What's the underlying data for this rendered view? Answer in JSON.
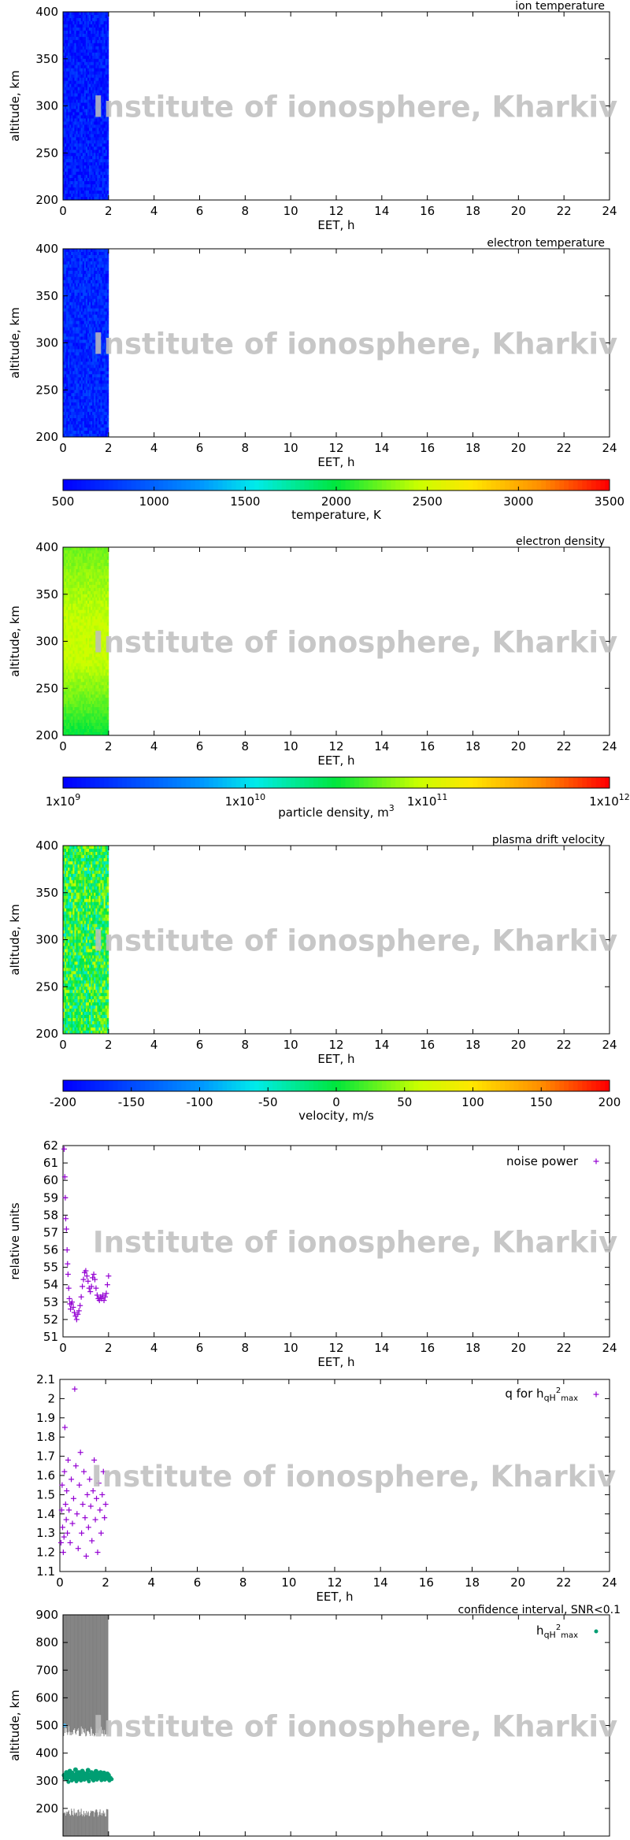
{
  "watermark": "Institute of ionosphere, Kharkiv",
  "colors": {
    "noise": "#9400d3",
    "q": "#9400d3",
    "h": "#009e73",
    "ci": "#808080",
    "ci_dot": "#56b4e9"
  },
  "chart_data": [
    {
      "type": "heatmap",
      "title": "ion temperature",
      "xlabel": "EET, h",
      "ylabel": "altitude, km",
      "xlim": [
        0,
        24
      ],
      "ylim": [
        200,
        400
      ],
      "xticks": [
        "0",
        "2",
        "4",
        "6",
        "8",
        "10",
        "12",
        "14",
        "16",
        "18",
        "20",
        "22",
        "24"
      ],
      "yticks": [
        "200",
        "250",
        "300",
        "350",
        "400"
      ],
      "data_coverage_hours": [
        0,
        2
      ],
      "colorbar": "temperature",
      "dominant_value_K": 650
    },
    {
      "type": "heatmap",
      "title": "electron temperature",
      "xlabel": "EET, h",
      "ylabel": "altitude, km",
      "xlim": [
        0,
        24
      ],
      "ylim": [
        200,
        400
      ],
      "xticks": [
        "0",
        "2",
        "4",
        "6",
        "8",
        "10",
        "12",
        "14",
        "16",
        "18",
        "20",
        "22",
        "24"
      ],
      "yticks": [
        "200",
        "250",
        "300",
        "350",
        "400"
      ],
      "data_coverage_hours": [
        0,
        2
      ],
      "colorbar": "temperature",
      "dominant_value_K": 700
    },
    {
      "type": "colorbar",
      "label": "temperature, K",
      "range": [
        500,
        3500
      ],
      "ticks": [
        "500",
        "1000",
        "1500",
        "2000",
        "2500",
        "3000",
        "3500"
      ]
    },
    {
      "type": "heatmap",
      "title": "electron density",
      "xlabel": "EET, h",
      "ylabel": "altitude, km",
      "xlim": [
        0,
        24
      ],
      "ylim": [
        200,
        400
      ],
      "xticks": [
        "0",
        "2",
        "4",
        "6",
        "8",
        "10",
        "12",
        "14",
        "16",
        "18",
        "20",
        "22",
        "24"
      ],
      "yticks": [
        "200",
        "250",
        "300",
        "350",
        "400"
      ],
      "data_coverage_hours": [
        0,
        2
      ],
      "colorbar": "density",
      "profile_log10_m3": [
        [
          200,
          10.5
        ],
        [
          240,
          10.75
        ],
        [
          280,
          10.95
        ],
        [
          320,
          10.95
        ],
        [
          360,
          10.85
        ],
        [
          400,
          10.75
        ]
      ]
    },
    {
      "type": "colorbar",
      "label": "particle density, m",
      "label_sup": "3",
      "scale": "log",
      "range": [
        1000000000.0,
        1000000000000.0
      ],
      "ticks": [
        {
          "base": "1x10",
          "exp": "9"
        },
        {
          "base": "1x10",
          "exp": "10"
        },
        {
          "base": "1x10",
          "exp": "11"
        },
        {
          "base": "1x10",
          "exp": "12"
        }
      ]
    },
    {
      "type": "heatmap",
      "title": "plasma drift velocity",
      "xlabel": "EET, h",
      "ylabel": "altitude, km",
      "xlim": [
        0,
        24
      ],
      "ylim": [
        200,
        400
      ],
      "xticks": [
        "0",
        "2",
        "4",
        "6",
        "8",
        "10",
        "12",
        "14",
        "16",
        "18",
        "20",
        "22",
        "24"
      ],
      "yticks": [
        "200",
        "250",
        "300",
        "350",
        "400"
      ],
      "data_coverage_hours": [
        0,
        2
      ],
      "colorbar": "velocity",
      "dominant_value_ms": 5
    },
    {
      "type": "colorbar",
      "label": "velocity, m/s",
      "range": [
        -200,
        200
      ],
      "ticks": [
        "-200",
        "-150",
        "-100",
        "-50",
        "0",
        "50",
        "100",
        "150",
        "200"
      ]
    },
    {
      "type": "scatter",
      "legend": "noise power",
      "legend_position": "top-right",
      "xlabel": "EET, h",
      "ylabel": "relative units",
      "xlim": [
        0,
        24
      ],
      "ylim": [
        51,
        62
      ],
      "xticks": [
        "0",
        "2",
        "4",
        "6",
        "8",
        "10",
        "12",
        "14",
        "16",
        "18",
        "20",
        "22",
        "24"
      ],
      "yticks": [
        "51",
        "52",
        "53",
        "54",
        "55",
        "56",
        "57",
        "58",
        "59",
        "60",
        "61",
        "62"
      ],
      "points": [
        [
          0.05,
          61.8
        ],
        [
          0.08,
          60.2
        ],
        [
          0.1,
          59.0
        ],
        [
          0.12,
          57.8
        ],
        [
          0.15,
          57.2
        ],
        [
          0.18,
          56.0
        ],
        [
          0.2,
          55.2
        ],
        [
          0.22,
          54.6
        ],
        [
          0.25,
          53.8
        ],
        [
          0.28,
          53.2
        ],
        [
          0.3,
          52.9
        ],
        [
          0.33,
          52.6
        ],
        [
          0.36,
          52.9
        ],
        [
          0.4,
          53.0
        ],
        [
          0.45,
          52.7
        ],
        [
          0.5,
          52.4
        ],
        [
          0.55,
          52.2
        ],
        [
          0.6,
          52.0
        ],
        [
          0.65,
          52.3
        ],
        [
          0.7,
          52.5
        ],
        [
          0.75,
          52.8
        ],
        [
          0.8,
          53.3
        ],
        [
          0.85,
          53.9
        ],
        [
          0.9,
          54.3
        ],
        [
          0.95,
          54.7
        ],
        [
          1.0,
          54.8
        ],
        [
          1.05,
          54.5
        ],
        [
          1.1,
          54.2
        ],
        [
          1.15,
          53.8
        ],
        [
          1.2,
          53.6
        ],
        [
          1.25,
          53.9
        ],
        [
          1.3,
          54.4
        ],
        [
          1.35,
          54.6
        ],
        [
          1.4,
          54.3
        ],
        [
          1.45,
          53.8
        ],
        [
          1.5,
          53.4
        ],
        [
          1.55,
          53.2
        ],
        [
          1.6,
          53.1
        ],
        [
          1.65,
          53.3
        ],
        [
          1.7,
          53.2
        ],
        [
          1.75,
          53.4
        ],
        [
          1.8,
          53.1
        ],
        [
          1.85,
          53.3
        ],
        [
          1.9,
          53.5
        ],
        [
          1.95,
          54.0
        ],
        [
          2.0,
          54.5
        ]
      ]
    },
    {
      "type": "scatter",
      "legend": "q for h",
      "legend_sub": "qH",
      "legend_sup": "2",
      "legend_sub2": "max",
      "legend_position": "top-right",
      "xlabel": "EET, h",
      "ylabel": "",
      "xlim": [
        0,
        24
      ],
      "ylim": [
        1.1,
        2.1
      ],
      "xticks": [
        "0",
        "2",
        "4",
        "6",
        "8",
        "10",
        "12",
        "14",
        "16",
        "18",
        "20",
        "22",
        "24"
      ],
      "yticks": [
        "1.1",
        "1.2",
        "1.3",
        "1.4",
        "1.5",
        "1.6",
        "1.7",
        "1.8",
        "1.9",
        "2",
        "2.1"
      ],
      "points": [
        [
          0.05,
          1.25
        ],
        [
          0.08,
          1.42
        ],
        [
          0.1,
          1.55
        ],
        [
          0.12,
          1.33
        ],
        [
          0.15,
          1.2
        ],
        [
          0.18,
          1.28
        ],
        [
          0.2,
          1.62
        ],
        [
          0.22,
          1.85
        ],
        [
          0.25,
          1.45
        ],
        [
          0.28,
          1.37
        ],
        [
          0.3,
          1.52
        ],
        [
          0.33,
          1.3
        ],
        [
          0.36,
          1.68
        ],
        [
          0.4,
          1.42
        ],
        [
          0.45,
          1.25
        ],
        [
          0.5,
          1.58
        ],
        [
          0.55,
          1.35
        ],
        [
          0.6,
          1.48
        ],
        [
          0.65,
          2.05
        ],
        [
          0.7,
          1.65
        ],
        [
          0.75,
          1.4
        ],
        [
          0.8,
          1.22
        ],
        [
          0.85,
          1.55
        ],
        [
          0.9,
          1.72
        ],
        [
          0.95,
          1.3
        ],
        [
          1.0,
          1.45
        ],
        [
          1.05,
          1.62
        ],
        [
          1.1,
          1.38
        ],
        [
          1.15,
          1.18
        ],
        [
          1.2,
          1.5
        ],
        [
          1.25,
          1.33
        ],
        [
          1.3,
          1.58
        ],
        [
          1.35,
          1.44
        ],
        [
          1.4,
          1.26
        ],
        [
          1.45,
          1.52
        ],
        [
          1.5,
          1.68
        ],
        [
          1.55,
          1.37
        ],
        [
          1.6,
          1.48
        ],
        [
          1.65,
          1.2
        ],
        [
          1.7,
          1.56
        ],
        [
          1.75,
          1.42
        ],
        [
          1.8,
          1.3
        ],
        [
          1.85,
          1.5
        ],
        [
          1.9,
          1.62
        ],
        [
          1.95,
          1.38
        ],
        [
          2.0,
          1.45
        ]
      ]
    },
    {
      "type": "scatter",
      "title": "confidence interval, SNR<0.1",
      "legend": "h",
      "legend_sub": "qH",
      "legend_sup": "2",
      "legend_sub2": "max",
      "legend_position": "top-right",
      "xlabel": "EET, h",
      "ylabel": "altitude, km",
      "xlim": [
        0,
        24
      ],
      "ylim": [
        100,
        900
      ],
      "xticks": [
        "0",
        "2",
        "4",
        "6",
        "8",
        "10",
        "12",
        "14",
        "16",
        "18",
        "20",
        "22",
        "24"
      ],
      "yticks": [
        "200",
        "300",
        "400",
        "500",
        "600",
        "700",
        "800",
        "900"
      ],
      "ci_upper_band_km": [
        460,
        900
      ],
      "ci_lower_band_km": [
        100,
        200
      ],
      "points": [
        [
          0.05,
          320
        ],
        [
          0.1,
          310
        ],
        [
          0.15,
          330
        ],
        [
          0.2,
          325
        ],
        [
          0.25,
          315
        ],
        [
          0.3,
          335
        ],
        [
          0.35,
          320
        ],
        [
          0.4,
          328
        ],
        [
          0.45,
          312
        ],
        [
          0.5,
          318
        ],
        [
          0.55,
          340
        ],
        [
          0.6,
          325
        ],
        [
          0.65,
          315
        ],
        [
          0.7,
          330
        ],
        [
          0.75,
          322
        ],
        [
          0.8,
          318
        ],
        [
          0.85,
          335
        ],
        [
          0.9,
          328
        ],
        [
          0.95,
          320
        ],
        [
          1.0,
          312
        ],
        [
          1.05,
          326
        ],
        [
          1.1,
          338
        ],
        [
          1.15,
          320
        ],
        [
          1.2,
          315
        ],
        [
          1.25,
          330
        ],
        [
          1.3,
          325
        ],
        [
          1.35,
          318
        ],
        [
          1.4,
          322
        ],
        [
          1.45,
          334
        ],
        [
          1.5,
          328
        ],
        [
          1.55,
          316
        ],
        [
          1.6,
          324
        ],
        [
          1.65,
          330
        ],
        [
          1.7,
          318
        ],
        [
          1.75,
          322
        ],
        [
          1.8,
          328
        ],
        [
          1.85,
          320
        ],
        [
          1.9,
          315
        ],
        [
          1.95,
          325
        ],
        [
          2.0,
          320
        ]
      ],
      "extra_point": [
        0.0,
        500
      ]
    }
  ]
}
